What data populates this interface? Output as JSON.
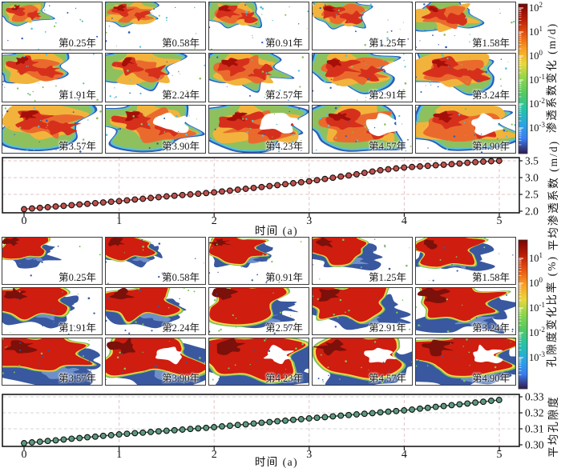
{
  "grids": {
    "snapshot_labels": [
      "第0.25年",
      "第0.58年",
      "第0.91年",
      "第1.25年",
      "第1.58年",
      "第1.91年",
      "第2.24年",
      "第2.57年",
      "第2.91年",
      "第3.24年",
      "第3.57年",
      "第3.90年",
      "第4.23年",
      "第4.57年",
      "第4.90年"
    ],
    "snapshot_times_years": [
      0.25,
      0.58,
      0.91,
      1.25,
      1.58,
      1.91,
      2.24,
      2.57,
      2.91,
      3.24,
      3.57,
      3.9,
      4.23,
      4.57,
      4.9
    ]
  },
  "colors": {
    "marker1": "#c0504d",
    "line1": "#a83a30",
    "marker2": "#5d9b80",
    "line2": "#2f5546",
    "grid_pink": "#e4c3c3",
    "grid_gray": "#d6d6d6",
    "panel_border": "#3d3d3d",
    "colorbar_gradient": [
      "#7a0403",
      "#bb1b06",
      "#e85410",
      "#fb9e23",
      "#e9d73a",
      "#8bd64c",
      "#53c963",
      "#25c3a5",
      "#2ba6e0",
      "#3a7df1",
      "#311a4d"
    ],
    "perm_palette": [
      "#2e5cb8",
      "#55c2da",
      "#8fc05e",
      "#f2b33c",
      "#ea6a2e",
      "#d6301c",
      "#a50f08"
    ],
    "poro_palette": [
      "#39589f",
      "#6f8fca",
      "#7cc45c",
      "#ffd94a",
      "#cf1d10",
      "#7c100a"
    ]
  },
  "chart_data": [
    {
      "type": "heatmap",
      "title": "渗透系数变化 (m/d)",
      "grid_rows": 3,
      "grid_cols": 5,
      "snapshot_times_years": [
        0.25,
        0.58,
        0.91,
        1.25,
        1.58,
        1.91,
        2.24,
        2.57,
        2.91,
        3.24,
        3.57,
        3.9,
        4.23,
        4.57,
        4.9
      ],
      "colorbar_scale": "log",
      "colorbar_tick_labels": [
        "10^2",
        "10^1",
        "10^0",
        "10^-1",
        "10^-2",
        "10^-3"
      ],
      "units": "m/d"
    },
    {
      "type": "line",
      "xlabel": "时间 (a)",
      "ylabel": "平均渗透系数 (m/d)",
      "xlim": [
        -0.15,
        5.2
      ],
      "ylim": [
        2.0,
        3.5
      ],
      "xticks": [
        0,
        1,
        2,
        3,
        4,
        5
      ],
      "yticks": [
        2.0,
        2.5,
        3.0,
        3.5
      ],
      "ytick_decimals": 1,
      "legend": "none",
      "grid": "dashed",
      "x_start": 0,
      "x_step": 0.0833,
      "values": [
        2.06,
        2.08,
        2.1,
        2.12,
        2.14,
        2.16,
        2.18,
        2.2,
        2.22,
        2.24,
        2.26,
        2.28,
        2.3,
        2.323,
        2.347,
        2.37,
        2.393,
        2.417,
        2.44,
        2.46,
        2.48,
        2.5,
        2.52,
        2.54,
        2.56,
        2.587,
        2.613,
        2.64,
        2.667,
        2.693,
        2.72,
        2.748,
        2.777,
        2.805,
        2.833,
        2.862,
        2.89,
        2.925,
        2.96,
        2.995,
        3.03,
        3.065,
        3.1,
        3.14,
        3.18,
        3.22,
        3.247,
        3.273,
        3.3,
        3.317,
        3.333,
        3.35,
        3.367,
        3.383,
        3.4,
        3.42,
        3.44,
        3.46,
        3.473,
        3.487,
        3.5
      ]
    },
    {
      "type": "heatmap",
      "title": "孔隙度变化比率 (%)",
      "grid_rows": 3,
      "grid_cols": 5,
      "snapshot_times_years": [
        0.25,
        0.58,
        0.91,
        1.25,
        1.58,
        1.91,
        2.24,
        2.57,
        2.91,
        3.24,
        3.57,
        3.9,
        4.23,
        4.57,
        4.9
      ],
      "colorbar_scale": "log",
      "colorbar_tick_labels": [
        "10^1",
        "10^0",
        "10^-1",
        "10^-2",
        "10^-3"
      ],
      "units": "%"
    },
    {
      "type": "line",
      "xlabel": "时间 (a)",
      "ylabel": "平均孔隙度",
      "xlim": [
        -0.15,
        5.2
      ],
      "ylim": [
        0.3,
        0.33
      ],
      "xticks": [
        0,
        1,
        2,
        3,
        4,
        5
      ],
      "yticks": [
        0.3,
        0.31,
        0.32,
        0.33
      ],
      "ytick_decimals": 2,
      "legend": "none",
      "grid": "dashed",
      "x_start": 0,
      "x_step": 0.0833,
      "values": [
        0.301,
        0.3015,
        0.3019,
        0.3024,
        0.3028,
        0.3033,
        0.3038,
        0.3042,
        0.3047,
        0.3051,
        0.3056,
        0.306,
        0.3065,
        0.3069,
        0.3073,
        0.3076,
        0.308,
        0.3084,
        0.3088,
        0.3091,
        0.3095,
        0.3099,
        0.3103,
        0.3106,
        0.311,
        0.3115,
        0.3119,
        0.3124,
        0.3128,
        0.3133,
        0.3138,
        0.3142,
        0.3147,
        0.3151,
        0.3156,
        0.316,
        0.3165,
        0.3169,
        0.3173,
        0.3178,
        0.3182,
        0.3186,
        0.319,
        0.3194,
        0.3198,
        0.3203,
        0.3207,
        0.3211,
        0.3215,
        0.322,
        0.3226,
        0.3231,
        0.3237,
        0.3242,
        0.3248,
        0.3253,
        0.3258,
        0.3264,
        0.3269,
        0.3275,
        0.328
      ]
    }
  ]
}
